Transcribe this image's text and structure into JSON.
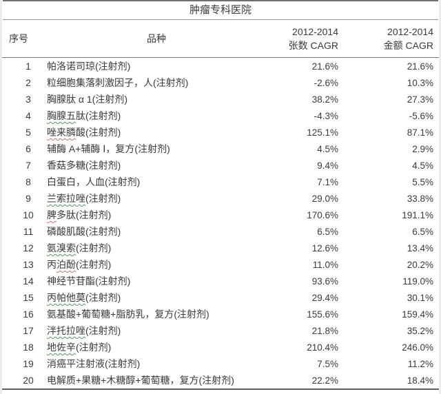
{
  "table": {
    "title": "肿瘤专科医院",
    "columns": {
      "index": "序号",
      "product": "品种",
      "volume_line1": "2012-2014",
      "volume_line2": "张数 CAGR",
      "amount_line1": "2012-2014",
      "amount_line2": "金额 CAGR"
    },
    "rows": [
      {
        "no": "1",
        "name": "帕洛诺司琼(注射剂)",
        "volume_cagr": "21.6%",
        "amount_cagr": "21.6%"
      },
      {
        "no": "2",
        "name": "粒细胞集落刺激因子，人(注射剂)",
        "volume_cagr": "-2.6%",
        "amount_cagr": "10.3%"
      },
      {
        "no": "3",
        "name": "胸腺肽 α 1(注射剂)",
        "volume_cagr": "38.2%",
        "amount_cagr": "27.3%"
      },
      {
        "no": "4",
        "name": "胸腺五肽(注射剂)",
        "volume_cagr": "-4.3%",
        "amount_cagr": "-5.6%",
        "squiggle": {
          "text": "胸腺五",
          "color": "green"
        }
      },
      {
        "no": "5",
        "name": "唑来膦酸(注射剂)",
        "volume_cagr": "125.1%",
        "amount_cagr": "87.1%",
        "squiggle": {
          "text": "唑来膦",
          "color": "red"
        }
      },
      {
        "no": "6",
        "name": "辅酶 A+辅酶 Ⅰ，复方(注射剂)",
        "volume_cagr": "4.5%",
        "amount_cagr": "2.9%"
      },
      {
        "no": "7",
        "name": "香菇多糖(注射剂)",
        "volume_cagr": "9.4%",
        "amount_cagr": "4.5%"
      },
      {
        "no": "8",
        "name": "白蛋白，人血(注射剂)",
        "volume_cagr": "7.1%",
        "amount_cagr": "5.5%"
      },
      {
        "no": "9",
        "name": "兰索拉唑(注射剂)",
        "volume_cagr": "29.0%",
        "amount_cagr": "33.8%",
        "squiggle": {
          "text": "兰索拉唑",
          "color": "green"
        }
      },
      {
        "no": "10",
        "name": "脾多肽(注射剂)",
        "volume_cagr": "170.6%",
        "amount_cagr": "191.1%",
        "squiggle": {
          "text": "脾",
          "color": "red"
        }
      },
      {
        "no": "11",
        "name": "磷酸肌酸(注射剂)",
        "volume_cagr": "6.5%",
        "amount_cagr": "6.5%"
      },
      {
        "no": "12",
        "name": "氨溴索(注射剂)",
        "volume_cagr": "12.6%",
        "amount_cagr": "13.4%",
        "squiggle": {
          "text": "氨溴索",
          "color": "green"
        }
      },
      {
        "no": "13",
        "name": "丙泊酚(注射剂)",
        "volume_cagr": "11.0%",
        "amount_cagr": "20.2%",
        "squiggle": {
          "text": "泊酚",
          "color": "red"
        }
      },
      {
        "no": "14",
        "name": "神经节苷酯(注射剂)",
        "volume_cagr": "93.6%",
        "amount_cagr": "119.0%"
      },
      {
        "no": "15",
        "name": "丙帕他莫(注射剂)",
        "volume_cagr": "29.4%",
        "amount_cagr": "30.1%",
        "squiggle": {
          "text": "丙帕他莫",
          "color": "green"
        }
      },
      {
        "no": "16",
        "name": "氨基酸+葡萄糖+脂肪乳，复方(注射剂)",
        "volume_cagr": "155.6%",
        "amount_cagr": "159.4%"
      },
      {
        "no": "17",
        "name": "泮托拉唑(注射剂)",
        "volume_cagr": "21.8%",
        "amount_cagr": "35.2%",
        "squiggle": {
          "text": "泮托拉唑",
          "color": "green"
        }
      },
      {
        "no": "18",
        "name": "地佐辛(注射剂)",
        "volume_cagr": "210.4%",
        "amount_cagr": "246.0%",
        "squiggle": {
          "text": "地佐辛",
          "color": "green"
        }
      },
      {
        "no": "19",
        "name": "消癌平注射液(注射剂)",
        "volume_cagr": "7.5%",
        "amount_cagr": "11.2%"
      },
      {
        "no": "20",
        "name": "电解质+果糖+木糖醇+葡萄糖，复方(注射剂)",
        "volume_cagr": "22.2%",
        "amount_cagr": "18.4%"
      }
    ]
  },
  "colors": {
    "text": "#3a3a3a",
    "rule_heavy": "#6f6f6f",
    "rule_light": "#9a9a9a",
    "squiggle_green": "#3aa35a",
    "squiggle_red": "#d96a6a"
  }
}
